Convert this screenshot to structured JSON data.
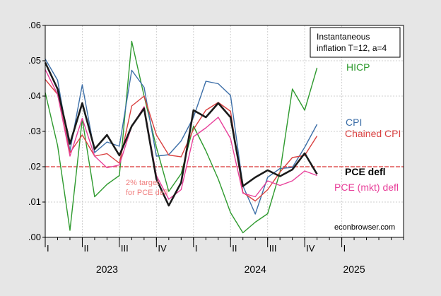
{
  "chart_data": {
    "type": "line",
    "legend_box": {
      "line1": "Instantaneous",
      "line2": "inflation T=12, a=4",
      "placement": "top-right"
    },
    "source_note": "econbrowser.com",
    "target_label": {
      "line1": "2% target",
      "line2": "for PCE defl",
      "value": 0.02,
      "color": "#e05555"
    },
    "ylim": [
      0,
      0.06
    ],
    "yticks": [
      {
        "value": 0.0,
        "label": ".00"
      },
      {
        "value": 0.01,
        "label": ".01"
      },
      {
        "value": 0.02,
        "label": ".02"
      },
      {
        "value": 0.03,
        "label": ".03"
      },
      {
        "value": 0.04,
        "label": ".04"
      },
      {
        "value": 0.05,
        "label": ".05"
      },
      {
        "value": 0.06,
        "label": ".06"
      }
    ],
    "x_range_months": [
      "2023-01",
      "2025-06"
    ],
    "quarter_ticks": [
      {
        "month": "2023-01",
        "label": "I"
      },
      {
        "month": "2023-04",
        "label": "II"
      },
      {
        "month": "2023-07",
        "label": "III"
      },
      {
        "month": "2023-10",
        "label": "IV"
      },
      {
        "month": "2024-01",
        "label": "I"
      },
      {
        "month": "2024-04",
        "label": "II"
      },
      {
        "month": "2024-07",
        "label": "III"
      },
      {
        "month": "2024-10",
        "label": "IV"
      },
      {
        "month": "2025-01",
        "label": "I"
      }
    ],
    "year_labels": [
      {
        "month": "2023-06",
        "label": "2023"
      },
      {
        "month": "2024-06",
        "label": "2024"
      },
      {
        "month": "2025-02",
        "label": "2025"
      }
    ],
    "months": [
      "2023-01",
      "2023-02",
      "2023-03",
      "2023-04",
      "2023-05",
      "2023-06",
      "2023-07",
      "2023-08",
      "2023-09",
      "2023-10",
      "2023-11",
      "2023-12",
      "2024-01",
      "2024-02",
      "2024-03",
      "2024-04",
      "2024-05",
      "2024-06",
      "2024-07",
      "2024-08",
      "2024-09",
      "2024-10",
      "2024-11"
    ],
    "series": [
      {
        "name": "HICP",
        "color": "#2e9a2e",
        "width": 1.4,
        "values": [
          0.041,
          0.026,
          0.002,
          0.0335,
          0.0115,
          0.015,
          0.0175,
          0.0555,
          0.04,
          0.0255,
          0.013,
          0.018,
          0.0315,
          0.0245,
          0.0165,
          0.007,
          0.0013,
          0.0043,
          0.0067,
          0.0185,
          0.042,
          0.036,
          0.048
        ]
      },
      {
        "name": "CPI",
        "color": "#3d6fa8",
        "width": 1.4,
        "values": [
          0.0505,
          0.0445,
          0.0245,
          0.0432,
          0.024,
          0.027,
          0.0258,
          0.0473,
          0.0425,
          0.023,
          0.0234,
          0.0273,
          0.034,
          0.0442,
          0.0435,
          0.0402,
          0.0146,
          0.0066,
          0.017,
          0.0195,
          0.0198,
          0.0255,
          0.032
        ]
      },
      {
        "name": "Chained CPI",
        "color": "#d94040",
        "width": 1.4,
        "values": [
          0.0447,
          0.0405,
          0.024,
          0.029,
          0.023,
          0.0237,
          0.021,
          0.0372,
          0.04,
          0.029,
          0.0233,
          0.0228,
          0.0306,
          0.036,
          0.0382,
          0.0357,
          0.0127,
          0.0103,
          0.0135,
          0.0185,
          0.0226,
          0.0232,
          0.0287
        ]
      },
      {
        "name": "PCE (mkt) defl",
        "color": "#e8409a",
        "width": 1.4,
        "values": [
          0.0475,
          0.0405,
          0.023,
          0.0337,
          0.023,
          0.0197,
          0.0205,
          0.0315,
          0.037,
          0.0175,
          0.0108,
          0.0135,
          0.0285,
          0.031,
          0.034,
          0.028,
          0.0125,
          0.0115,
          0.016,
          0.0147,
          0.016,
          0.0188,
          0.0175
        ]
      },
      {
        "name": "PCE defl",
        "color": "#1a1a1a",
        "width": 2.6,
        "values": [
          0.0495,
          0.042,
          0.0265,
          0.038,
          0.025,
          0.029,
          0.0232,
          0.0315,
          0.0365,
          0.0165,
          0.009,
          0.0155,
          0.036,
          0.034,
          0.038,
          0.034,
          0.0145,
          0.017,
          0.019,
          0.0173,
          0.0192,
          0.0238,
          0.0179
        ]
      }
    ],
    "series_labels": [
      {
        "text": "HICP",
        "color": "#2e9a2e",
        "bold": false
      },
      {
        "text": "CPI",
        "color": "#3d6fa8",
        "bold": false
      },
      {
        "text": "Chained CPI",
        "color": "#d94040",
        "bold": false
      },
      {
        "text": "PCE defl",
        "color": "#000000",
        "bold": true
      },
      {
        "text": "PCE (mkt) defl",
        "color": "#e8409a",
        "bold": false
      }
    ],
    "grid": true,
    "colors": {
      "background": "#e6e6e6",
      "plot_background": "#ffffff",
      "grid": "#cfcfcf"
    }
  }
}
